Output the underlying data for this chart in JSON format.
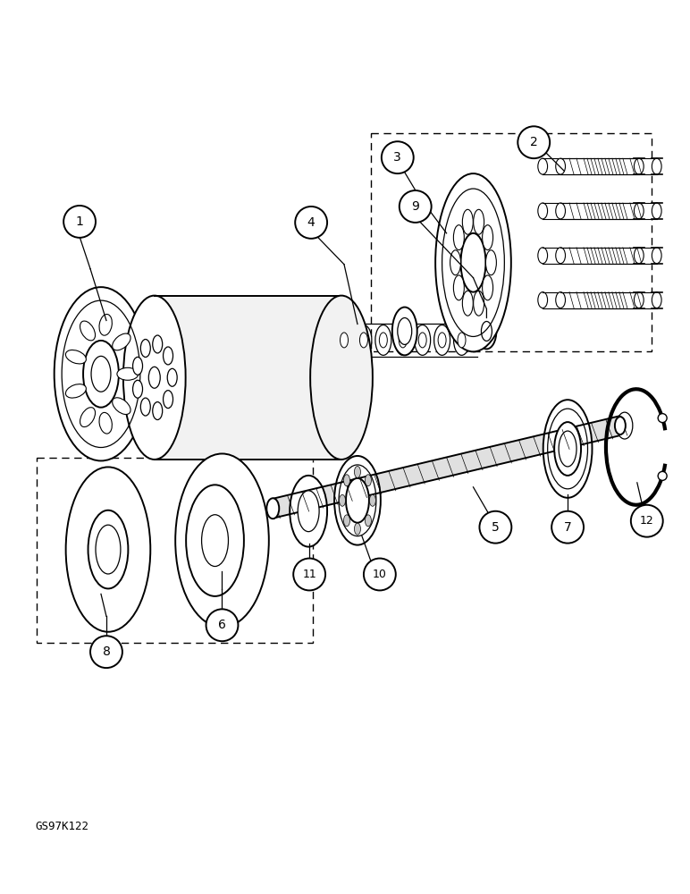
{
  "background_color": "#ffffff",
  "line_color": "#000000",
  "figure_width": 7.72,
  "figure_height": 10.0,
  "dpi": 100,
  "watermark": "GS97K122"
}
